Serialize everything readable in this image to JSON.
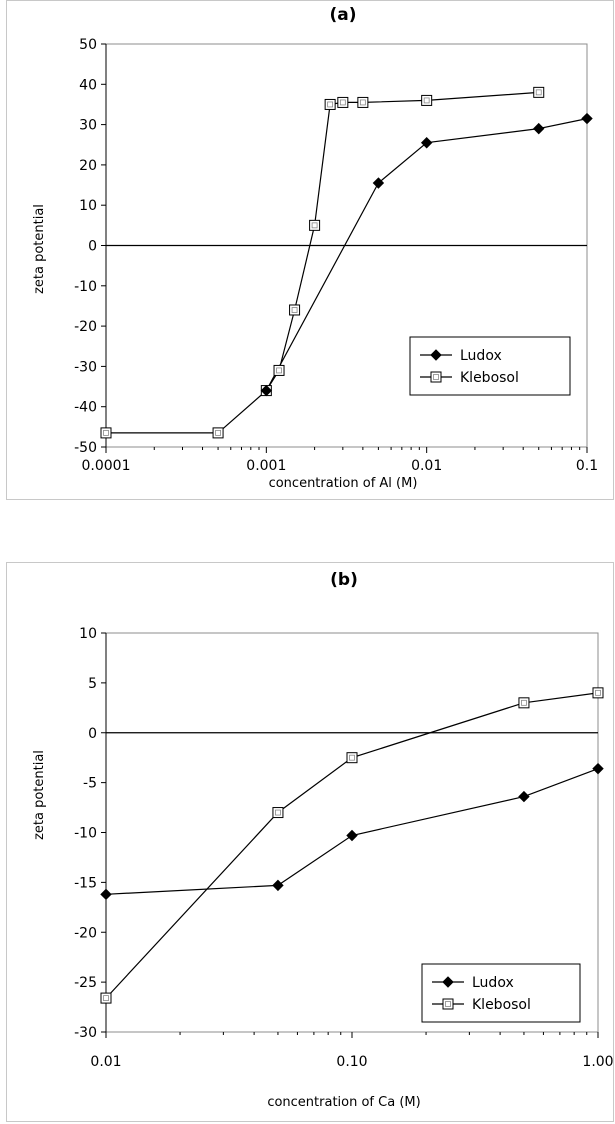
{
  "chart_data": [
    {
      "type": "line",
      "title": "(a)",
      "xlabel": "concentration of Al  (M)",
      "ylabel": "zeta potential",
      "xscale": "log",
      "xlim": [
        0.0001,
        0.1
      ],
      "ylim": [
        -50,
        50
      ],
      "xticks": [
        0.0001,
        0.001,
        0.01,
        0.1
      ],
      "xtick_labels": [
        "0.0001",
        "0.001",
        "0.01",
        "0.1"
      ],
      "yticks": [
        -50,
        -40,
        -30,
        -20,
        -10,
        0,
        10,
        20,
        30,
        40,
        50
      ],
      "ytick_labels": [
        "-50",
        "-40",
        "-30",
        "-20",
        "-10",
        "0",
        "10",
        "20",
        "30",
        "40",
        "50"
      ],
      "grid": false,
      "legend_position": "lower-right",
      "series": [
        {
          "name": "Ludox",
          "marker": "filled-diamond",
          "x": [
            0.001,
            0.005,
            0.01,
            0.05,
            0.1
          ],
          "y": [
            -36,
            15.5,
            25.5,
            29,
            31.5
          ]
        },
        {
          "name": "Klebosol",
          "marker": "open-square",
          "x": [
            0.0001,
            0.0005,
            0.001,
            0.0012,
            0.0015,
            0.002,
            0.0025,
            0.003,
            0.004,
            0.01,
            0.05
          ],
          "y": [
            -46.5,
            -46.5,
            -36,
            -31,
            -16,
            5,
            35,
            35.5,
            35.5,
            36,
            38
          ]
        }
      ]
    },
    {
      "type": "line",
      "title": "(b)",
      "xlabel": "concentration of Ca (M)",
      "ylabel": "zeta potential",
      "xscale": "log",
      "xlim": [
        0.01,
        1
      ],
      "ylim": [
        -30,
        10
      ],
      "xticks": [
        0.01,
        0.1,
        1
      ],
      "xtick_labels": [
        "0.01",
        "0.10",
        "1.00"
      ],
      "yticks": [
        -30,
        -25,
        -20,
        -15,
        -10,
        -5,
        0,
        5,
        10
      ],
      "ytick_labels": [
        "-30",
        "-25",
        "-20",
        "-15",
        "-10",
        "-5",
        "0",
        "5",
        "10"
      ],
      "grid": false,
      "legend_position": "lower-right",
      "series": [
        {
          "name": "Ludox",
          "marker": "filled-diamond",
          "x": [
            0.01,
            0.05,
            0.1,
            0.5,
            1
          ],
          "y": [
            -16.2,
            -15.3,
            -10.3,
            -6.4,
            -3.6
          ]
        },
        {
          "name": "Klebosol",
          "marker": "open-square",
          "x": [
            0.01,
            0.05,
            0.1,
            0.5,
            1
          ],
          "y": [
            -26.6,
            -8,
            -2.5,
            3,
            4
          ]
        }
      ]
    }
  ]
}
